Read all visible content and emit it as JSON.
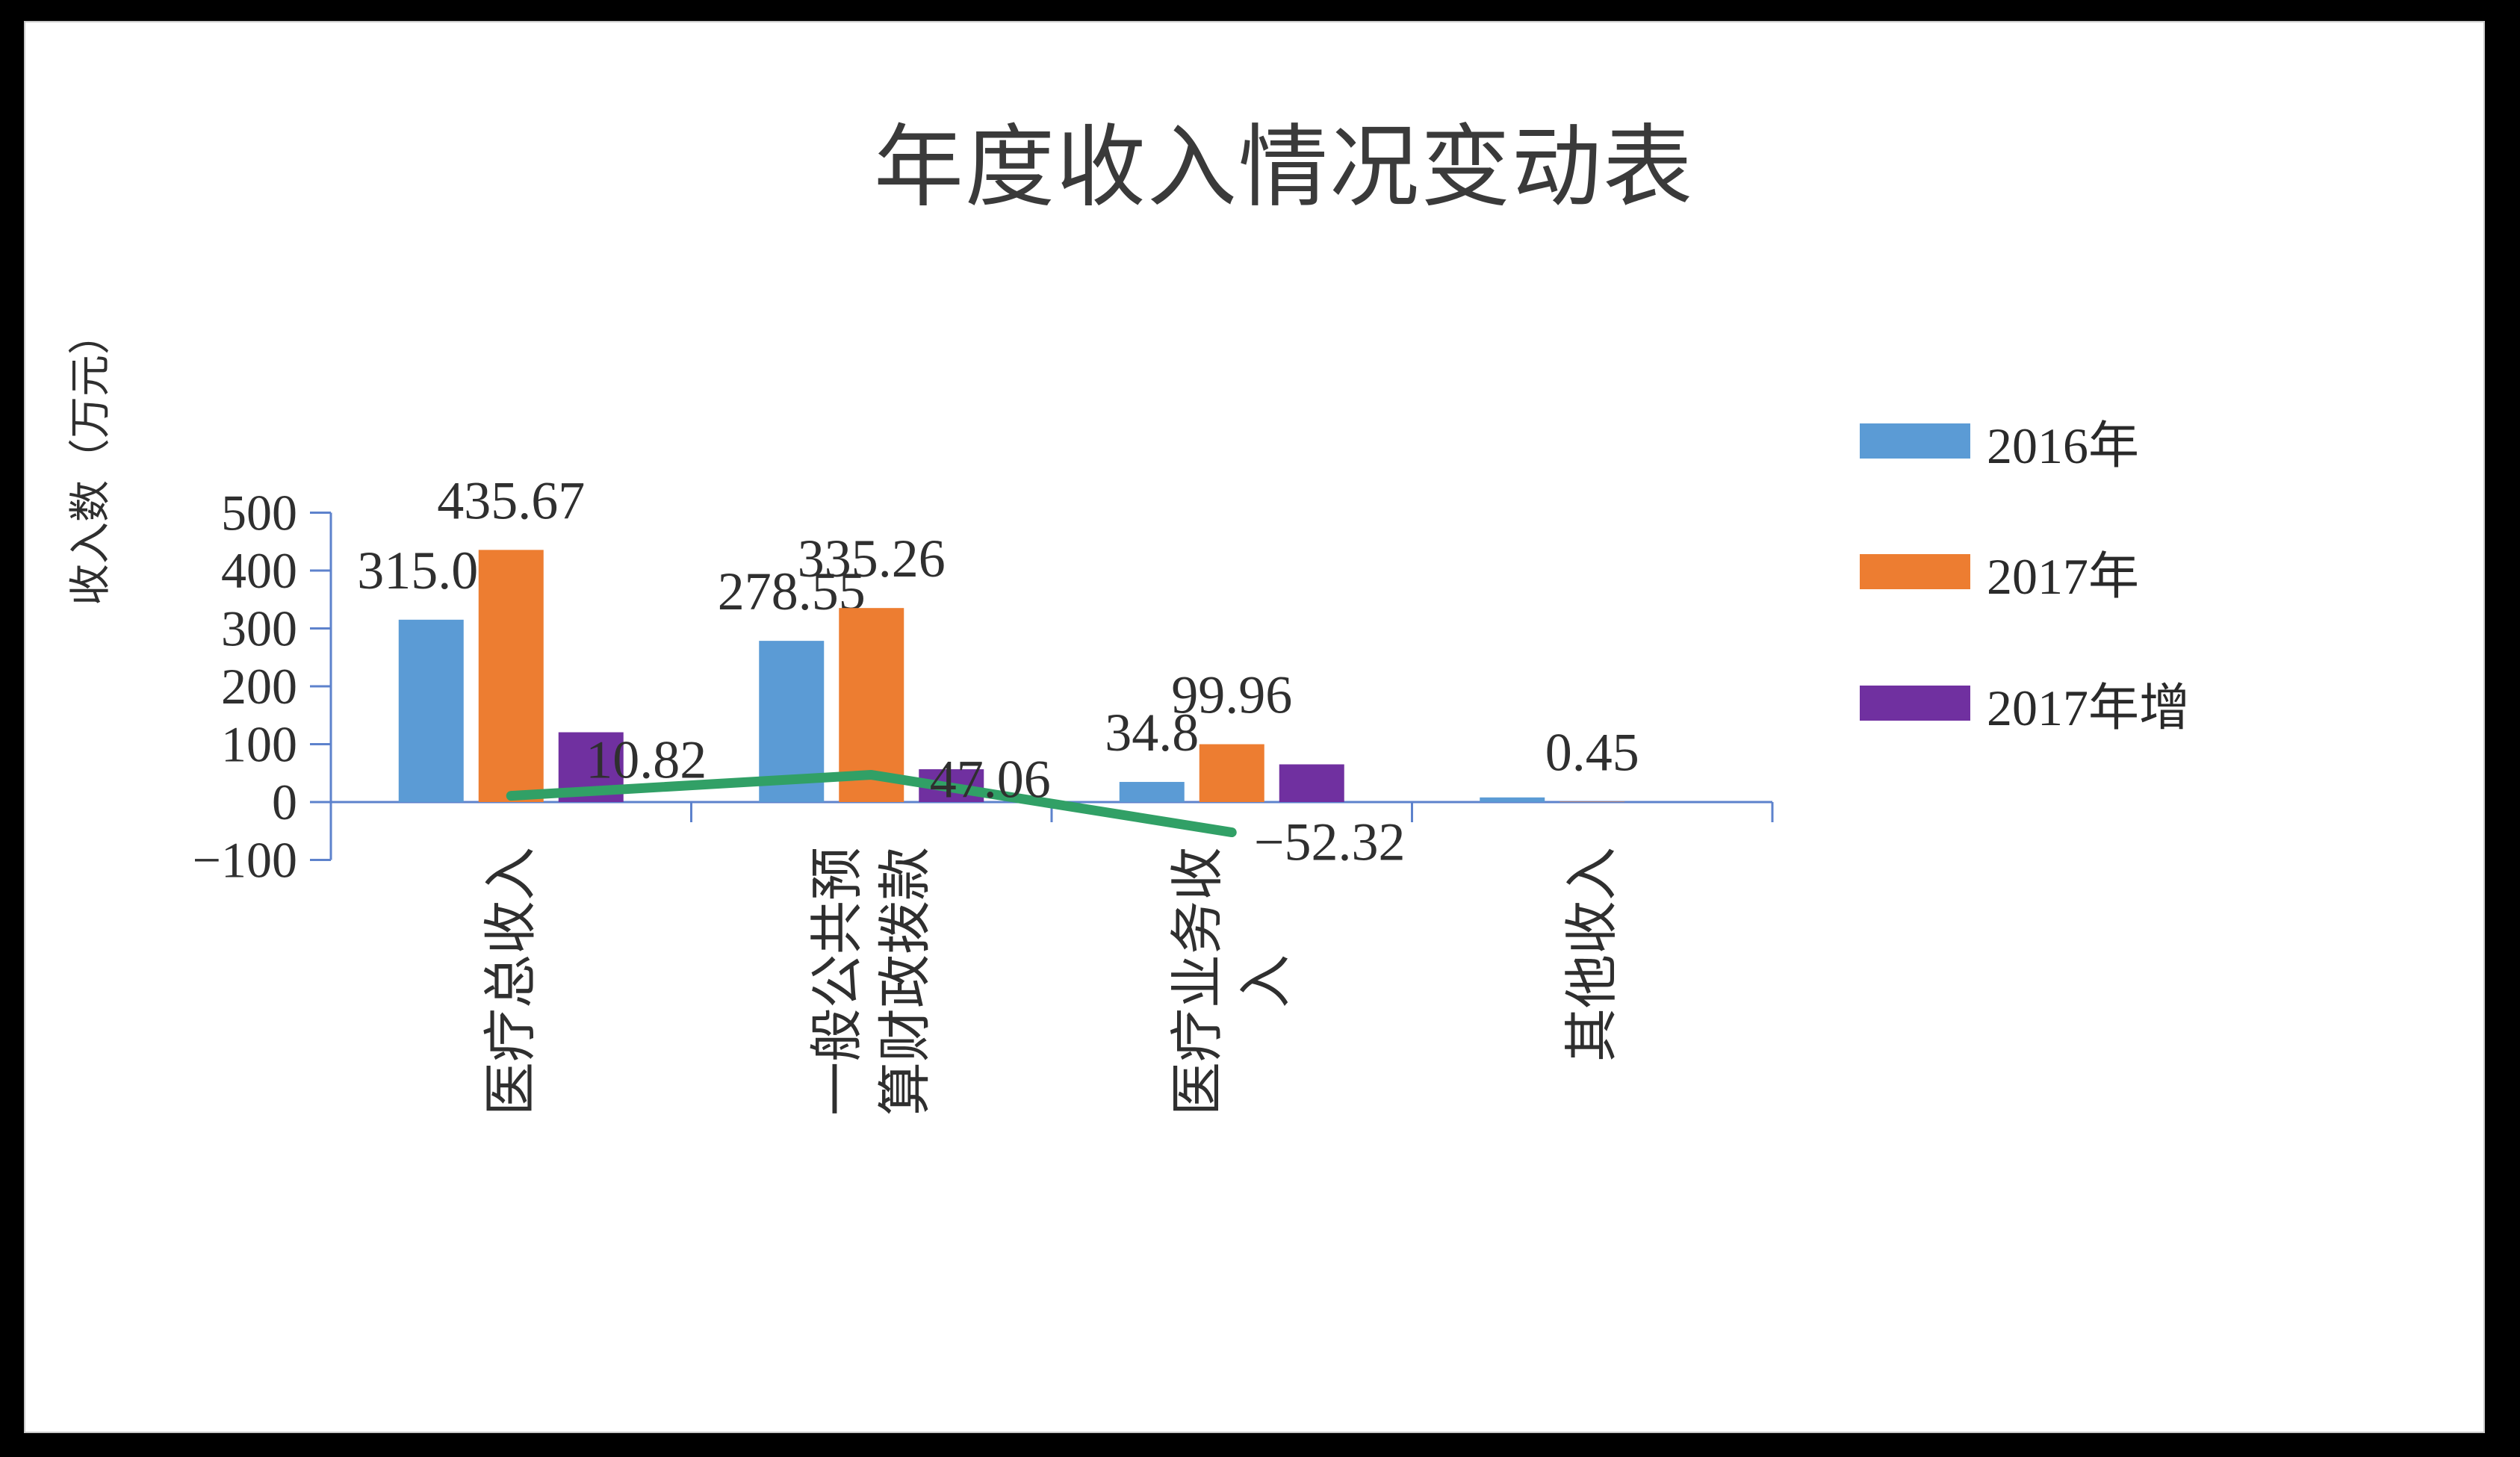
{
  "chart": {
    "title": "年度收入情况变动表",
    "y_axis_title": "收入数（万元）",
    "y_tick_labels": [
      "500",
      "400",
      "300",
      "200",
      "100",
      "0",
      "−100"
    ],
    "legend": [
      {
        "label": "2016年",
        "color": "#5B9BD5"
      },
      {
        "label": "2017年",
        "color": "#ED7D31"
      },
      {
        "label": "2017年增",
        "color": "#7030A0"
      }
    ]
  },
  "chart_data": {
    "type": "bar",
    "subtype": "grouped bars with line overlay",
    "title": "年度收入情况变动表",
    "xlabel": "",
    "ylabel": "收入数（万元）",
    "ylim": [
      -100,
      500
    ],
    "y_tick_step": 100,
    "grid": false,
    "legend_position": "right",
    "categories": [
      "医疗总收入",
      "一般公共预算财政拨款",
      "医疗业务收入",
      "其他收入"
    ],
    "category_label_lines": [
      [
        "医疗总收入"
      ],
      [
        "一般公共预",
        "算财政拨款"
      ],
      [
        "医疗业务收",
        "入"
      ],
      [
        "其他收入"
      ]
    ],
    "series": [
      {
        "name": "2016年",
        "type": "bar",
        "color": "#5B9BD5",
        "in_legend": true,
        "values": [
          315.07,
          278.55,
          34.8,
          8
        ],
        "data_labels": [
          "315.07",
          "278.55",
          "34.8",
          null
        ],
        "note": "4th bar is visible but carries no label; 8 estimated from pixel height"
      },
      {
        "name": "2017年",
        "type": "bar",
        "color": "#ED7D31",
        "in_legend": true,
        "values": [
          435.67,
          335.26,
          99.96,
          0.45
        ],
        "data_labels": [
          "435.67",
          "335.26",
          "99.96",
          "0.45"
        ]
      },
      {
        "name": "2017年增",
        "type": "bar",
        "color": "#7030A0",
        "in_legend": true,
        "values": [
          120.6,
          56.71,
          65.16,
          null
        ],
        "data_labels": [
          null,
          null,
          null,
          null
        ],
        "note": "bars shown without labels; values estimated from heights (equal 2017 minus 2016)"
      },
      {
        "name": "",
        "type": "line",
        "color": "#31A066",
        "in_legend": false,
        "values": [
          10.82,
          47.06,
          -52.32,
          null
        ],
        "data_labels": [
          "10.82",
          "47.06",
          "−52.32",
          null
        ]
      }
    ]
  }
}
